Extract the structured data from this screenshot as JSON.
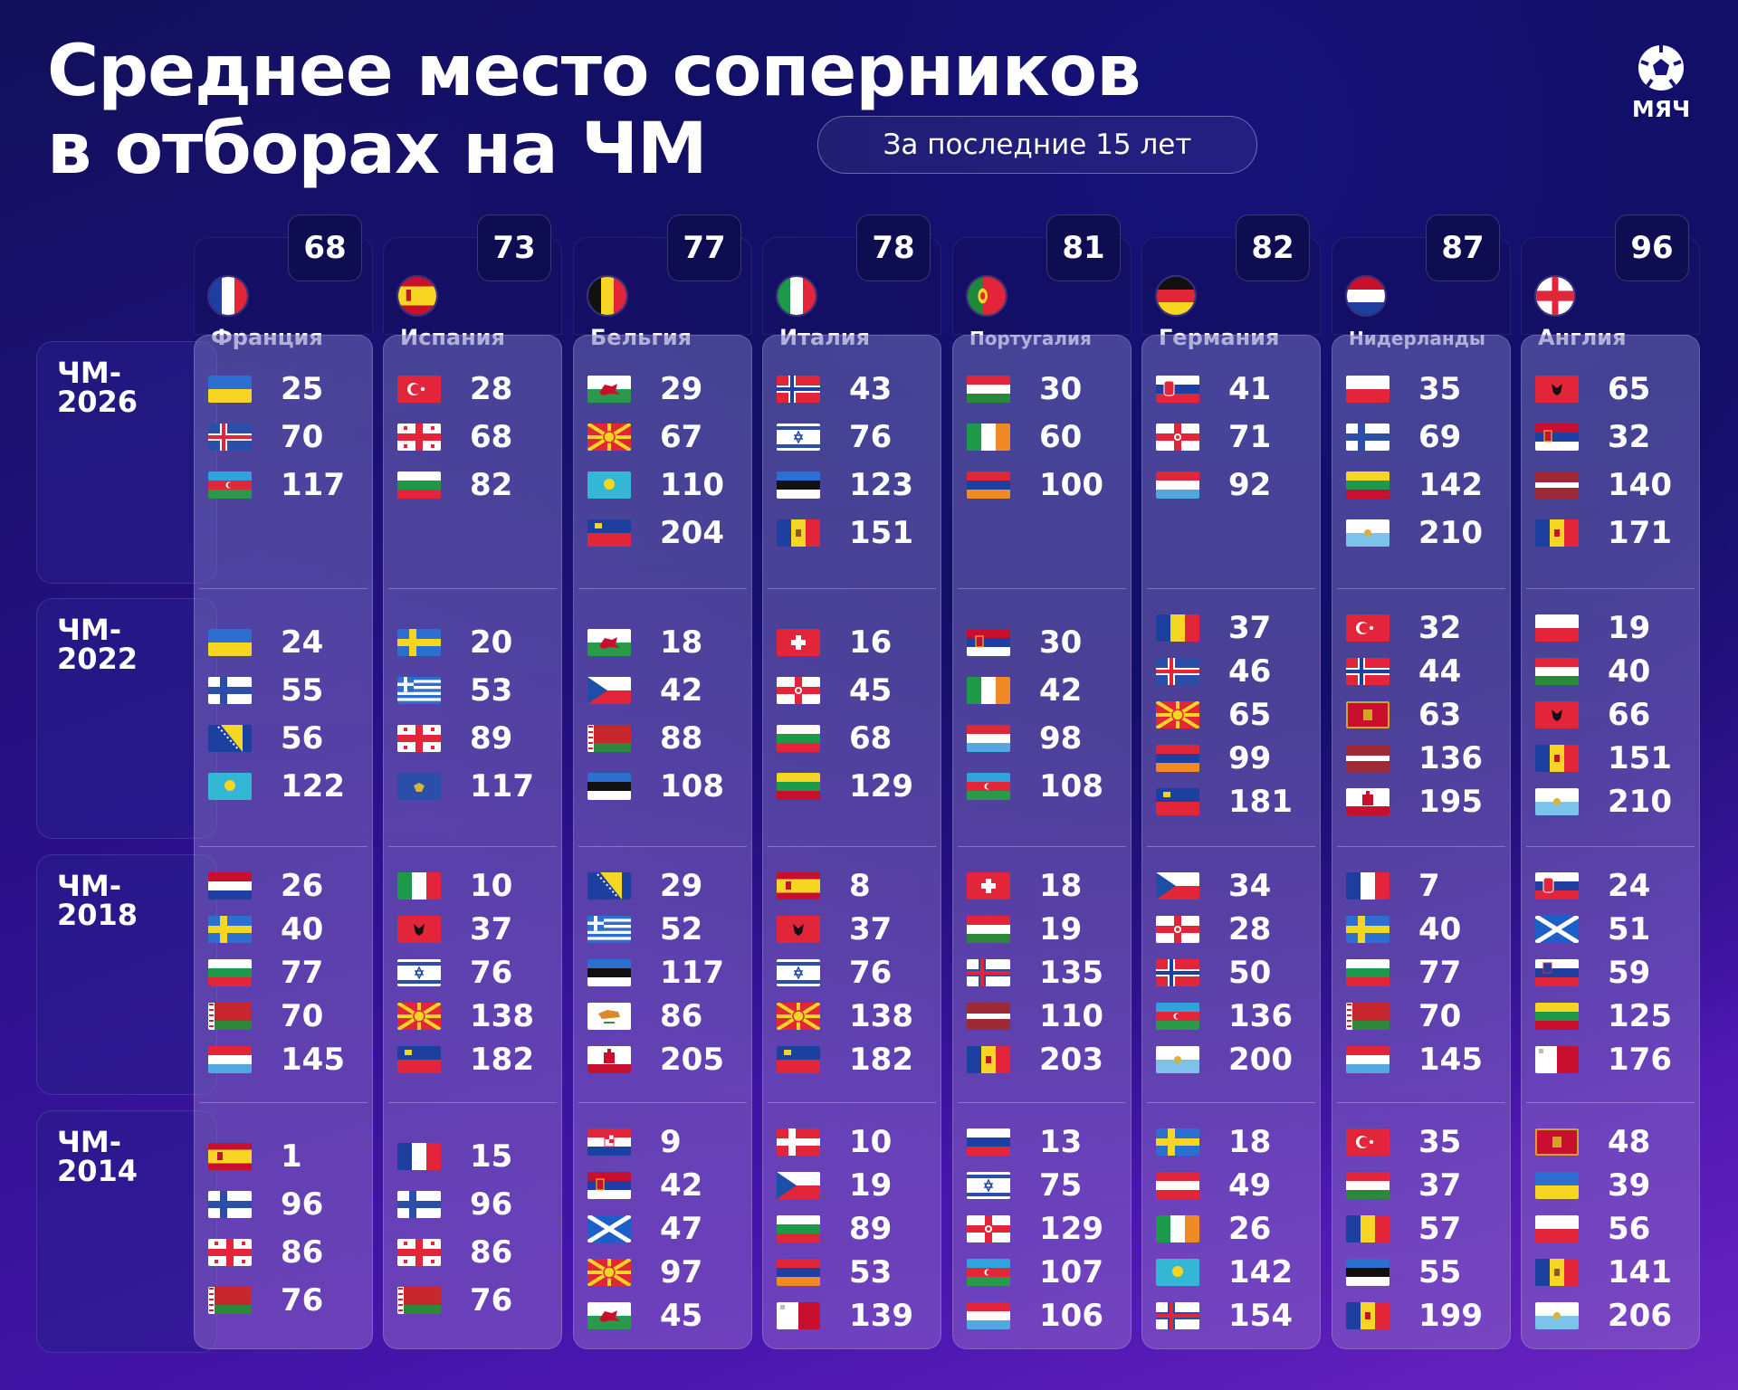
{
  "title_line1": "Среднее место соперников",
  "title_line2": "в отборах на ЧМ",
  "period": "За последние 15 лет",
  "logo_text": "МЯЧ",
  "logo_icon": "football-ball-icon",
  "cycles": [
    "ЧМ-\n2026",
    "ЧМ-\n2022",
    "ЧМ-\n2018",
    "ЧМ-\n2014"
  ],
  "teams": [
    {
      "name": "Франция",
      "avg": "68",
      "flag": "france",
      "groups": [
        [
          "25",
          "70",
          "117"
        ],
        [
          "24",
          "55",
          "56",
          "122"
        ],
        [
          "26",
          "40",
          "77",
          "70",
          "145"
        ],
        [
          "1",
          "96",
          "86",
          "76"
        ]
      ],
      "flags": [
        [
          "ukraine",
          "iceland",
          "azerbaijan"
        ],
        [
          "ukraine",
          "finland",
          "bosnia",
          "kazakhstan"
        ],
        [
          "netherlands",
          "sweden",
          "bulgaria",
          "belarus",
          "luxembourg"
        ],
        [
          "spain",
          "finland",
          "georgia",
          "belarus"
        ]
      ]
    },
    {
      "name": "Испания",
      "avg": "73",
      "flag": "spain",
      "groups": [
        [
          "28",
          "68",
          "82"
        ],
        [
          "20",
          "53",
          "89",
          "117"
        ],
        [
          "10",
          "37",
          "76",
          "138",
          "182"
        ],
        [
          "15",
          "96",
          "86",
          "76"
        ]
      ],
      "flags": [
        [
          "turkey",
          "georgia",
          "bulgaria"
        ],
        [
          "sweden",
          "greece",
          "georgia",
          "kosovo"
        ],
        [
          "italy",
          "albania",
          "israel",
          "macedonia",
          "liechtenstein"
        ],
        [
          "france",
          "finland",
          "georgia",
          "belarus"
        ]
      ]
    },
    {
      "name": "Бельгия",
      "avg": "77",
      "flag": "belgium",
      "groups": [
        [
          "29",
          "67",
          "110",
          "204"
        ],
        [
          "18",
          "42",
          "88",
          "108"
        ],
        [
          "29",
          "52",
          "117",
          "86",
          "205"
        ],
        [
          "9",
          "42",
          "47",
          "97",
          "45"
        ]
      ],
      "flags": [
        [
          "wales",
          "macedonia",
          "kazakhstan",
          "liechtenstein"
        ],
        [
          "wales",
          "czech",
          "belarus",
          "estonia"
        ],
        [
          "bosnia",
          "greece",
          "estonia",
          "cyprus",
          "gibraltar"
        ],
        [
          "croatia",
          "serbia",
          "scotland",
          "macedonia",
          "wales"
        ]
      ]
    },
    {
      "name": "Италия",
      "avg": "78",
      "flag": "italy",
      "groups": [
        [
          "43",
          "76",
          "123",
          "151"
        ],
        [
          "16",
          "45",
          "68",
          "129"
        ],
        [
          "8",
          "37",
          "76",
          "138",
          "182"
        ],
        [
          "10",
          "19",
          "89",
          "53",
          "139"
        ]
      ],
      "flags": [
        [
          "norway",
          "israel",
          "estonia",
          "moldova"
        ],
        [
          "switzerland",
          "northern-ireland",
          "bulgaria",
          "lithuania"
        ],
        [
          "spain",
          "albania",
          "israel",
          "macedonia",
          "liechtenstein"
        ],
        [
          "denmark",
          "czech",
          "bulgaria",
          "armenia",
          "malta"
        ]
      ]
    },
    {
      "name": "Португалия",
      "avg": "81",
      "flag": "portugal",
      "groups": [
        [
          "30",
          "60",
          "100"
        ],
        [
          "30",
          "42",
          "98",
          "108"
        ],
        [
          "18",
          "19",
          "135",
          "110",
          "203"
        ],
        [
          "13",
          "75",
          "129",
          "107",
          "106"
        ]
      ],
      "flags": [
        [
          "hungary",
          "ireland",
          "armenia"
        ],
        [
          "serbia",
          "ireland",
          "luxembourg",
          "azerbaijan"
        ],
        [
          "switzerland",
          "hungary",
          "faroe",
          "latvia",
          "andorra"
        ],
        [
          "russia",
          "israel",
          "northern-ireland",
          "azerbaijan",
          "luxembourg"
        ]
      ]
    },
    {
      "name": "Германия",
      "avg": "82",
      "flag": "germany",
      "groups": [
        [
          "41",
          "71",
          "92"
        ],
        [
          "37",
          "46",
          "65",
          "99",
          "181"
        ],
        [
          "34",
          "28",
          "50",
          "136",
          "200"
        ],
        [
          "18",
          "49",
          "26",
          "142",
          "154"
        ]
      ],
      "flags": [
        [
          "slovakia",
          "northern-ireland",
          "luxembourg"
        ],
        [
          "romania",
          "iceland",
          "macedonia",
          "armenia",
          "liechtenstein"
        ],
        [
          "czech",
          "northern-ireland",
          "norway",
          "azerbaijan",
          "san-marino"
        ],
        [
          "sweden",
          "austria",
          "ireland",
          "kazakhstan",
          "faroe"
        ]
      ]
    },
    {
      "name": "Нидерланды",
      "avg": "87",
      "flag": "netherlands",
      "groups": [
        [
          "35",
          "69",
          "142",
          "210"
        ],
        [
          "32",
          "44",
          "63",
          "136",
          "195"
        ],
        [
          "7",
          "40",
          "77",
          "70",
          "145"
        ],
        [
          "35",
          "37",
          "57",
          "55",
          "199"
        ]
      ],
      "flags": [
        [
          "poland",
          "finland",
          "lithuania",
          "san-marino"
        ],
        [
          "turkey",
          "norway",
          "montenegro",
          "latvia",
          "gibraltar"
        ],
        [
          "france",
          "sweden",
          "bulgaria",
          "belarus",
          "luxembourg"
        ],
        [
          "turkey",
          "hungary",
          "romania",
          "estonia",
          "andorra"
        ]
      ]
    },
    {
      "name": "Англия",
      "avg": "96",
      "flag": "england",
      "groups": [
        [
          "65",
          "32",
          "140",
          "171"
        ],
        [
          "19",
          "40",
          "66",
          "151",
          "210"
        ],
        [
          "24",
          "51",
          "59",
          "125",
          "176"
        ],
        [
          "48",
          "39",
          "56",
          "141",
          "206"
        ]
      ],
      "flags": [
        [
          "albania",
          "serbia",
          "latvia",
          "andorra"
        ],
        [
          "poland",
          "hungary",
          "albania",
          "andorra",
          "san-marino"
        ],
        [
          "slovakia",
          "scotland",
          "slovenia",
          "lithuania",
          "malta"
        ],
        [
          "montenegro",
          "ukraine",
          "poland",
          "moldova",
          "san-marino"
        ]
      ]
    }
  ],
  "colors": {
    "accent": "#120f66",
    "card": "#6e6eb9",
    "text": "#ffffff"
  }
}
